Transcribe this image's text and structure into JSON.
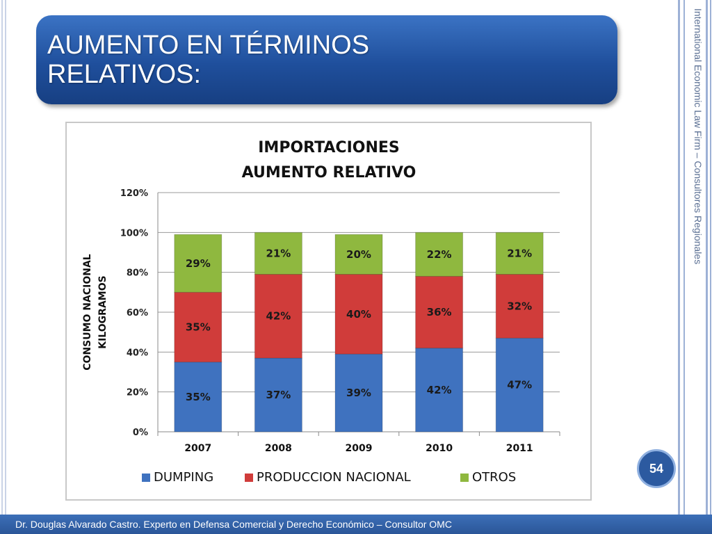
{
  "slide": {
    "title_line1": "AUMENTO EN TÉRMINOS",
    "title_line2": "RELATIVOS:",
    "side_text": "International Economic Law Firm – Consultores Regionales",
    "page_number": "54",
    "footer": "Dr. Douglas Alvarado Castro. Experto en Defensa Comercial y Derecho Económico – Consultor OMC"
  },
  "chart_data": {
    "type": "bar",
    "stacked": true,
    "title_lines": [
      "IMPORTACIONES",
      "AUMENTO RELATIVO"
    ],
    "ylabel_lines": [
      "CONSUMO NACIONAL",
      "KILOGRAMOS"
    ],
    "categories": [
      "2007",
      "2008",
      "2009",
      "2010",
      "2011"
    ],
    "yticks": [
      "0%",
      "20%",
      "40%",
      "60%",
      "80%",
      "100%",
      "120%"
    ],
    "ylim": [
      0,
      120
    ],
    "grid": true,
    "legend_position": "bottom",
    "series": [
      {
        "name": "DUMPING",
        "color": "#3f72bf",
        "values": [
          35,
          37,
          39,
          42,
          47
        ],
        "labels": [
          "35%",
          "37%",
          "39%",
          "42%",
          "47%"
        ]
      },
      {
        "name": "PRODUCCION NACIONAL",
        "color": "#d03c3a",
        "values": [
          35,
          42,
          40,
          36,
          32
        ],
        "labels": [
          "35%",
          "42%",
          "40%",
          "36%",
          "32%"
        ]
      },
      {
        "name": "OTROS",
        "color": "#8fb83f",
        "values": [
          29,
          21,
          20,
          22,
          21
        ],
        "labels": [
          "29%",
          "21%",
          "20%",
          "22%",
          "21%"
        ]
      }
    ]
  }
}
